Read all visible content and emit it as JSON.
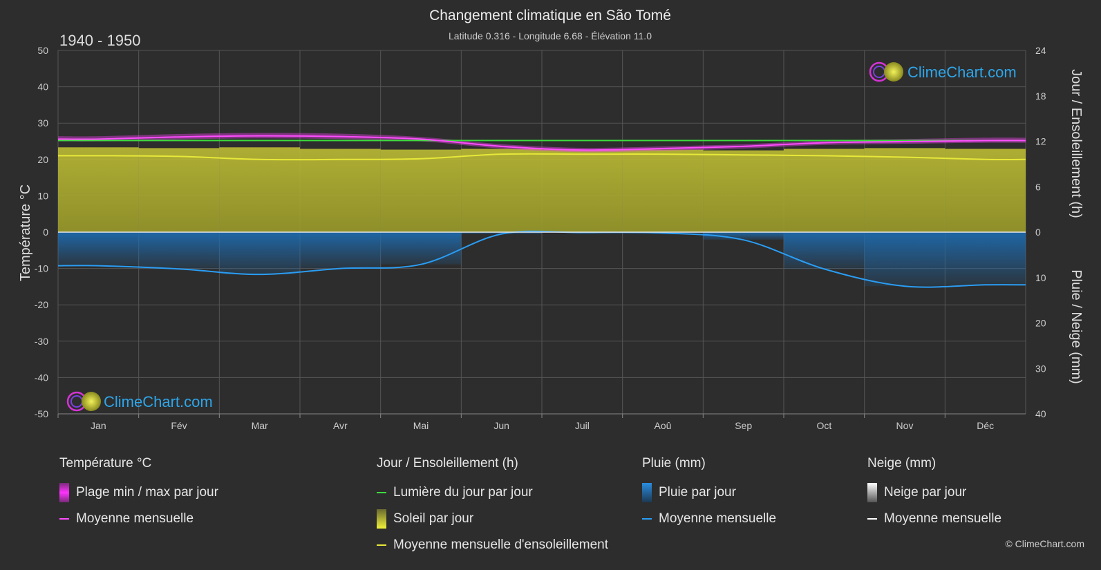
{
  "header": {
    "title": "Changement climatique en São Tomé",
    "subtitle": "Latitude 0.316 - Longitude 6.68 - Élévation 11.0",
    "period": "1940 - 1950"
  },
  "brand": {
    "logo_text": "ClimeChart.com",
    "copyright": "© ClimeChart.com"
  },
  "chart_data": {
    "type": "line",
    "categories": [
      "Jan",
      "Fév",
      "Mar",
      "Avr",
      "Mai",
      "Jun",
      "Juil",
      "Aoû",
      "Sep",
      "Oct",
      "Nov",
      "Déc"
    ],
    "left_axis": {
      "label": "Température °C",
      "range": [
        -50,
        50
      ],
      "ticks": [
        50,
        40,
        30,
        20,
        10,
        0,
        -10,
        -20,
        -30,
        -40,
        -50
      ]
    },
    "right_axis_top": {
      "label": "Jour / Ensoleillement (h)",
      "range": [
        0,
        24
      ],
      "ticks": [
        24,
        18,
        12,
        6,
        0
      ]
    },
    "right_axis_bottom": {
      "label": "Pluie / Neige (mm)",
      "range": [
        0,
        40
      ],
      "ticks": [
        0,
        10,
        20,
        30,
        40
      ]
    },
    "grid": true,
    "series": [
      {
        "name": "Moyenne mensuelle",
        "group": "temperature",
        "unit": "°C",
        "color": "#ff4dff",
        "values": [
          25.6,
          26.2,
          26.5,
          26.3,
          25.6,
          23.6,
          22.6,
          23.0,
          23.6,
          24.6,
          24.9,
          25.2
        ]
      },
      {
        "name": "Plage min / max par jour",
        "group": "temperature",
        "unit": "°C",
        "color": "#e040e0",
        "max": [
          26.4,
          27.0,
          27.3,
          27.1,
          26.2,
          24.2,
          23.2,
          23.6,
          24.2,
          25.2,
          25.6,
          26.0
        ],
        "min": [
          25.0,
          25.5,
          25.8,
          25.6,
          25.0,
          23.0,
          22.0,
          22.4,
          23.0,
          24.0,
          24.3,
          24.6
        ]
      },
      {
        "name": "Lumière du jour par jour",
        "group": "sun",
        "unit": "h",
        "color": "#3ddc3d",
        "values": [
          12.1,
          12.1,
          12.1,
          12.1,
          12.1,
          12.1,
          12.1,
          12.1,
          12.1,
          12.1,
          12.1,
          12.1
        ]
      },
      {
        "name": "Soleil par jour",
        "group": "sun",
        "unit": "h",
        "color": "#c9c93a",
        "values": [
          11.2,
          11.1,
          11.2,
          11.0,
          10.9,
          11.0,
          10.9,
          10.9,
          10.8,
          11.0,
          11.1,
          11.0
        ]
      },
      {
        "name": "Moyenne mensuelle d'ensoleillement",
        "group": "sun",
        "unit": "h",
        "color": "#e8e83a",
        "values": [
          10.1,
          10.0,
          9.6,
          9.6,
          9.7,
          10.3,
          10.3,
          10.3,
          10.2,
          10.1,
          9.9,
          9.6
        ]
      },
      {
        "name": "Pluie par jour",
        "group": "rain",
        "unit": "mm",
        "color": "#1f77c4",
        "values": [
          7.4,
          8.1,
          9.3,
          8.0,
          7.1,
          0.4,
          0.1,
          0.2,
          1.7,
          8.1,
          11.9,
          11.6
        ]
      },
      {
        "name": "Moyenne mensuelle",
        "group": "rain",
        "unit": "mm",
        "color": "#2a9df4",
        "values": [
          7.4,
          8.1,
          9.3,
          8.0,
          7.1,
          0.4,
          0.1,
          0.2,
          1.7,
          8.1,
          11.9,
          11.6
        ]
      }
    ]
  },
  "legend": {
    "temperature": {
      "title": "Température °C",
      "items": [
        "Plage min / max par jour",
        "Moyenne mensuelle"
      ]
    },
    "sun": {
      "title": "Jour / Ensoleillement (h)",
      "items": [
        "Lumière du jour par jour",
        "Soleil par jour",
        "Moyenne mensuelle d'ensoleillement"
      ]
    },
    "rain": {
      "title": "Pluie (mm)",
      "items": [
        "Pluie par jour",
        "Moyenne mensuelle"
      ]
    },
    "snow": {
      "title": "Neige (mm)",
      "items": [
        "Neige par jour",
        "Moyenne mensuelle"
      ]
    }
  },
  "colors": {
    "background": "#2d2d2d",
    "grid": "#555555",
    "temp_range": "#e040e0",
    "temp_mean": "#ff4dff",
    "daylight": "#3ddc3d",
    "sunshine": "#c9c93a",
    "sun_mean": "#e8e83a",
    "rain": "#1f77c4",
    "rain_mean": "#2a9df4",
    "snow": "#dddddd",
    "snow_mean": "#ffffff"
  }
}
